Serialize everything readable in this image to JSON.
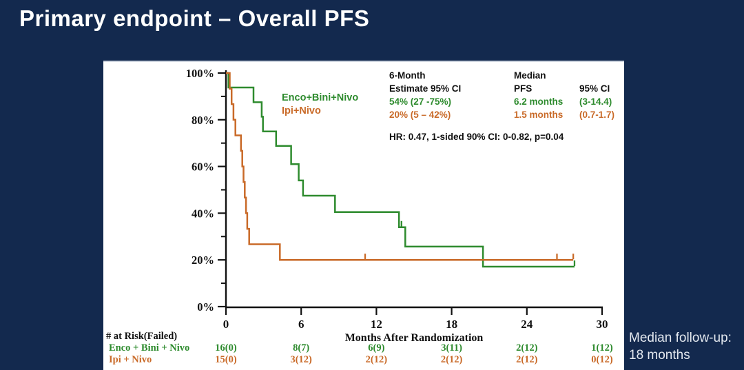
{
  "slide": {
    "title": "Primary endpoint – Overall PFS",
    "background_color": "#13294e",
    "footnote_line1": "Median follow-up:",
    "footnote_line2": "18 months"
  },
  "legend": {
    "enco": "Enco+Bini+Nivo",
    "ipi": "Ipi+Nivo"
  },
  "stats": {
    "col1": {
      "line1": "6-Month",
      "line2": "Estimate 95% CI",
      "enco": "54% (27 -75%)",
      "ipi": "20% (5 – 42%)"
    },
    "col2": {
      "line1": "Median",
      "line2": "PFS",
      "enco": "6.2 months",
      "ipi": "1.5 months"
    },
    "col3": {
      "line1": "",
      "line2": "95% CI",
      "enco": "(3-14.4)",
      "ipi": "(0.7-1.7)"
    },
    "hr": "HR: 0.47, 1-sided 90% CI: 0-0.82, p=0.04"
  },
  "chart_data": {
    "type": "line",
    "subtype": "kaplan-meier-step",
    "xlabel": "Months After Randomization",
    "ylabel": "",
    "xlim": [
      0,
      30
    ],
    "ylim": [
      0,
      100
    ],
    "grid": false,
    "x_major_ticks": [
      {
        "v": 0,
        "label": "0"
      },
      {
        "v": 6,
        "label": "6"
      },
      {
        "v": 12,
        "label": "12"
      },
      {
        "v": 18,
        "label": "18"
      },
      {
        "v": 24,
        "label": "24"
      },
      {
        "v": 30,
        "label": "30"
      }
    ],
    "y_major_ticks": [
      {
        "v": 100,
        "label": "100%"
      },
      {
        "v": 80,
        "label": "80%"
      },
      {
        "v": 60,
        "label": "60%"
      },
      {
        "v": 40,
        "label": "40%"
      },
      {
        "v": 20,
        "label": "20%"
      },
      {
        "v": 0,
        "label": "0%"
      }
    ],
    "y_minor_ticks": [
      90,
      70,
      50,
      30,
      10
    ],
    "series": [
      {
        "name": "Enco+Bini+Nivo",
        "color": "#2e8b2e",
        "steps": [
          [
            0,
            100
          ],
          [
            0.2,
            93.8
          ],
          [
            2.2,
            87.5
          ],
          [
            2.85,
            81.3
          ],
          [
            2.95,
            75
          ],
          [
            4.0,
            68.8
          ],
          [
            5.2,
            61
          ],
          [
            5.8,
            54
          ],
          [
            6.15,
            47.5
          ],
          [
            8.7,
            40.5
          ],
          [
            13.8,
            34
          ],
          [
            14.3,
            25.7
          ],
          [
            20.5,
            17.1
          ]
        ],
        "end": 27.8,
        "censors": [
          [
            14.0,
            34
          ],
          [
            27.8,
            17.1
          ]
        ]
      },
      {
        "name": "Ipi+Nivo",
        "color": "#c96a28",
        "steps": [
          [
            0,
            100
          ],
          [
            0.3,
            93.3
          ],
          [
            0.45,
            86.7
          ],
          [
            0.6,
            80
          ],
          [
            0.75,
            73.3
          ],
          [
            1.2,
            66.7
          ],
          [
            1.3,
            60
          ],
          [
            1.4,
            53.3
          ],
          [
            1.5,
            46.7
          ],
          [
            1.6,
            40
          ],
          [
            1.7,
            33.3
          ],
          [
            1.85,
            26.7
          ],
          [
            4.3,
            20
          ]
        ],
        "end": 27.7,
        "censors": [
          [
            11.1,
            20
          ],
          [
            26.4,
            20
          ],
          [
            27.7,
            20
          ]
        ]
      }
    ],
    "six_month_estimates": {
      "enco": "54% (27 -75%)",
      "ipi": "20% (5 – 42%)"
    },
    "median_pfs": {
      "enco": "6.2 months (3-14.4)",
      "ipi": "1.5 months (0.7-1.7)"
    },
    "hazard_ratio": "HR: 0.47, 1-sided 90% CI: 0-0.82, p=0.04"
  },
  "at_risk": {
    "header": "# at Risk(Failed)",
    "tick_months": [
      0,
      6,
      12,
      18,
      24,
      30
    ],
    "rows": [
      {
        "label": "Enco + Bini + Nivo",
        "color": "#2e8b2e",
        "values": [
          "16(0)",
          "8(7)",
          "6(9)",
          "3(11)",
          "2(12)",
          "1(12)"
        ]
      },
      {
        "label": "Ipi + Nivo",
        "color": "#c96a28",
        "values": [
          "15(0)",
          "3(12)",
          "2(12)",
          "2(12)",
          "2(12)",
          "0(12)"
        ]
      }
    ]
  }
}
